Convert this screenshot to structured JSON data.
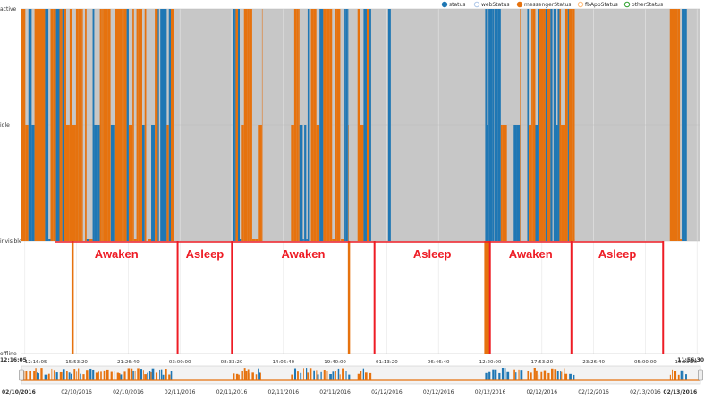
{
  "chart_data": {
    "type": "bar",
    "title": "",
    "xlabel": "",
    "ylabel": "",
    "y_categories": [
      "active",
      "idle",
      "invisible",
      "offline"
    ],
    "legend": {
      "placement": "top-right",
      "entries": [
        {
          "name": "status",
          "color": "#1f77b4",
          "filled": true
        },
        {
          "name": "webStatus",
          "color": "#aec7e8",
          "filled": false
        },
        {
          "name": "messengerStatus",
          "color": "#e6720e",
          "filled": true
        },
        {
          "name": "fbAppStatus",
          "color": "#ffbb78",
          "filled": false
        },
        {
          "name": "otherStatus",
          "color": "#2ca02c",
          "filled": false
        }
      ]
    },
    "x_ticks": [
      "12:16:05",
      "15:53:20",
      "21:26:40",
      "03:00:00",
      "08:33:20",
      "14:06:40",
      "19:40:00",
      "01:13:20",
      "06:46:40",
      "12:20:00",
      "17:53:20",
      "23:26:40",
      "05:00:00",
      "10:33:20"
    ],
    "navigator_ticks": [
      "02/10/2016",
      "02/10/2016",
      "02/10/2016",
      "02/11/2016",
      "02/11/2016",
      "02/11/2016",
      "02/11/2016",
      "02/12/2016",
      "02/12/2016",
      "02/12/2016",
      "02/12/2016",
      "02/12/2016",
      "02/13/2016",
      "02/13/2016"
    ],
    "x_range": [
      "02/10/2016 12:16:05",
      "02/13/2016 11:56:30"
    ],
    "range_start_label": "12:16:05",
    "range_end_label": "11:56:30",
    "left_date": "02/10/2016",
    "right_date": "02/13/2016",
    "grid": true,
    "annotations": [
      {
        "text": "Awaken",
        "from": 0.05,
        "to": 0.23
      },
      {
        "text": "Asleep",
        "from": 0.23,
        "to": 0.31
      },
      {
        "text": "Awaken",
        "from": 0.31,
        "to": 0.52
      },
      {
        "text": "Asleep",
        "from": 0.52,
        "to": 0.69
      },
      {
        "text": "Awaken",
        "from": 0.69,
        "to": 0.81
      },
      {
        "text": "Asleep",
        "from": 0.81,
        "to": 0.945
      }
    ],
    "boundaries": [
      0.23,
      0.31,
      0.52,
      0.69,
      0.81,
      0.945
    ],
    "offline_pulses": [
      0.075,
      0.482,
      0.683,
      0.685,
      0.688
    ],
    "activity_periods": [
      {
        "from": 0.0,
        "to": 0.222,
        "dominant": "messengerStatus",
        "status_mix": 0.35
      },
      {
        "from": 0.312,
        "to": 0.355,
        "dominant": "messengerStatus",
        "status_mix": 0.3
      },
      {
        "from": 0.397,
        "to": 0.482,
        "dominant": "messengerStatus",
        "status_mix": 0.4
      },
      {
        "from": 0.495,
        "to": 0.515,
        "dominant": "messengerStatus",
        "status_mix": 0.3
      },
      {
        "from": 0.683,
        "to": 0.715,
        "dominant": "status",
        "status_mix": 0.85
      },
      {
        "from": 0.725,
        "to": 0.735,
        "dominant": "status",
        "status_mix": 0.7
      },
      {
        "from": 0.745,
        "to": 0.815,
        "dominant": "messengerStatus",
        "status_mix": 0.3
      },
      {
        "from": 0.955,
        "to": 0.98,
        "dominant": "messengerStatus",
        "status_mix": 0.4
      }
    ]
  }
}
